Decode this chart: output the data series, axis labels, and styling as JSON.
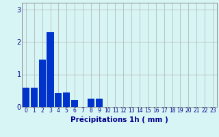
{
  "values": [
    0.6,
    0.6,
    1.45,
    2.3,
    0.42,
    0.45,
    0.22,
    0.0,
    0.25,
    0.25,
    0.0,
    0.0,
    0.0,
    0.0,
    0.0,
    0.0,
    0.0,
    0.0,
    0.0,
    0.0,
    0.0,
    0.0,
    0.0,
    0.0
  ],
  "bar_color": "#0033cc",
  "background_color": "#d8f5f5",
  "plot_bg_color": "#d8f5f5",
  "grid_color": "#b0b0b0",
  "xlabel": "Précipitations 1h ( mm )",
  "xlabel_color": "#00008b",
  "tick_color": "#00008b",
  "ylim": [
    0,
    3.2
  ],
  "yticks": [
    0,
    1,
    2,
    3
  ],
  "n_bars": 24,
  "tick_fontsize": 5.5,
  "xlabel_fontsize": 7.5
}
